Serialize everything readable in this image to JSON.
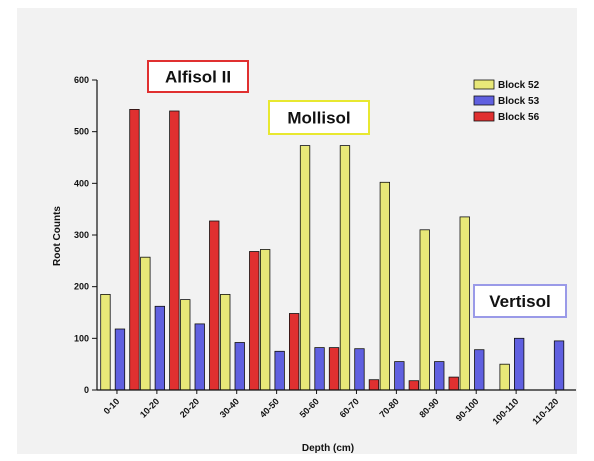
{
  "chart_data": {
    "type": "bar",
    "title": "",
    "xlabel": "Depth (cm)",
    "ylabel": "Root Counts",
    "ylim": [
      0,
      600
    ],
    "yticks": [
      0,
      100,
      200,
      300,
      400,
      500,
      600
    ],
    "grid": false,
    "legend_position": "top-right",
    "categories": [
      "0-10",
      "10-20",
      "20-20",
      "30-40",
      "40-50",
      "50-60",
      "60-70",
      "70-80",
      "80-90",
      "90-100",
      "100-110",
      "110-120"
    ],
    "series": [
      {
        "name": "Block 52",
        "color": "#e8e878",
        "values": [
          185,
          257,
          175,
          185,
          272,
          473,
          473,
          402,
          310,
          335,
          50,
          null
        ]
      },
      {
        "name": "Block 53",
        "color": "#6060e0",
        "values": [
          118,
          162,
          128,
          92,
          75,
          82,
          80,
          55,
          55,
          78,
          100,
          95
        ]
      },
      {
        "name": "Block 56",
        "color": "#e03030",
        "values": [
          543,
          540,
          327,
          268,
          148,
          82,
          20,
          18,
          25,
          null,
          null,
          null
        ]
      }
    ],
    "annotations": [
      {
        "text": "Alfisol II",
        "border_color": "#e03030"
      },
      {
        "text": "Mollisol",
        "border_color": "#e8e830"
      },
      {
        "text": "Vertisol",
        "border_color": "#9a9ae8"
      }
    ]
  }
}
